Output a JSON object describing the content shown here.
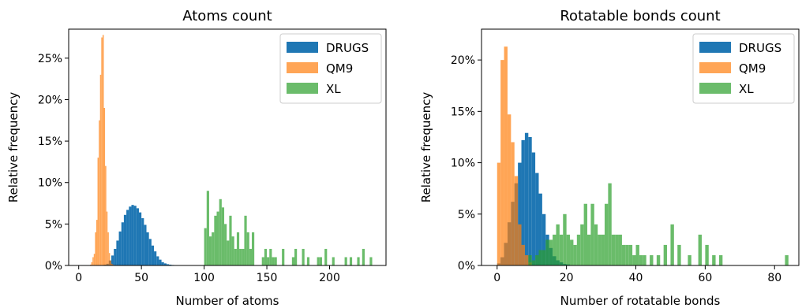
{
  "chart_data": [
    {
      "type": "histogram",
      "title": "Atoms count",
      "xlabel": "Number of atoms",
      "ylabel": "Relative frequency",
      "xlim": [
        -8,
        245
      ],
      "ylim": [
        0,
        0.285
      ],
      "xticks": [
        0,
        50,
        100,
        150,
        200
      ],
      "xtick_labels": [
        "0",
        "50",
        "100",
        "150",
        "200"
      ],
      "yticks": [
        0,
        0.05,
        0.1,
        0.15,
        0.2,
        0.25
      ],
      "ytick_labels": [
        "0%",
        "5%",
        "10%",
        "15%",
        "20%",
        "25%"
      ],
      "legend_position": "top-right",
      "series": [
        {
          "name": "DRUGS",
          "color": "#1f77b4",
          "bin_width": 2,
          "x": [
            20,
            22,
            24,
            26,
            28,
            30,
            32,
            34,
            36,
            38,
            40,
            42,
            44,
            46,
            48,
            50,
            52,
            54,
            56,
            58,
            60,
            62,
            64,
            66,
            68,
            70,
            72,
            74,
            76,
            78
          ],
          "y": [
            0.001,
            0.002,
            0.006,
            0.012,
            0.02,
            0.03,
            0.041,
            0.052,
            0.061,
            0.067,
            0.071,
            0.073,
            0.072,
            0.069,
            0.064,
            0.057,
            0.049,
            0.04,
            0.032,
            0.024,
            0.017,
            0.011,
            0.007,
            0.004,
            0.0025,
            0.0015,
            0.001,
            0.0006,
            0.0003,
            0.0002
          ]
        },
        {
          "name": "QM9",
          "color": "#ff7f0e",
          "bin_width": 1,
          "x": [
            9,
            10,
            11,
            12,
            13,
            14,
            15,
            16,
            17,
            18,
            19,
            20,
            21,
            22,
            23,
            24,
            25,
            26,
            27,
            28
          ],
          "y": [
            0.001,
            0.004,
            0.01,
            0.014,
            0.04,
            0.055,
            0.13,
            0.175,
            0.23,
            0.275,
            0.278,
            0.19,
            0.12,
            0.065,
            0.04,
            0.015,
            0.006,
            0.002,
            0.001,
            0.0005
          ]
        },
        {
          "name": "XL",
          "color": "#2ca02c",
          "bin_width": 2,
          "x": [
            100,
            102,
            104,
            106,
            108,
            110,
            112,
            114,
            116,
            118,
            120,
            122,
            124,
            126,
            128,
            130,
            132,
            134,
            136,
            138,
            146,
            148,
            150,
            152,
            154,
            156,
            162,
            170,
            172,
            178,
            182,
            190,
            192,
            196,
            202,
            212,
            216,
            222,
            226,
            232
          ],
          "y": [
            0.045,
            0.09,
            0.035,
            0.04,
            0.06,
            0.065,
            0.08,
            0.07,
            0.05,
            0.03,
            0.06,
            0.035,
            0.02,
            0.04,
            0.02,
            0.02,
            0.06,
            0.04,
            0.02,
            0.04,
            0.01,
            0.02,
            0.01,
            0.02,
            0.01,
            0.01,
            0.02,
            0.01,
            0.02,
            0.02,
            0.01,
            0.01,
            0.01,
            0.02,
            0.01,
            0.01,
            0.01,
            0.01,
            0.02,
            0.01
          ]
        }
      ]
    },
    {
      "type": "histogram",
      "title": "Rotatable bonds count",
      "xlabel": "Number of rotatable bonds",
      "ylabel": "Relative frequency",
      "xlim": [
        -4.5,
        87
      ],
      "ylim": [
        0,
        0.23
      ],
      "xticks": [
        0,
        20,
        40,
        60,
        80
      ],
      "xtick_labels": [
        "0",
        "20",
        "40",
        "60",
        "80"
      ],
      "yticks": [
        0,
        0.05,
        0.1,
        0.15,
        0.2
      ],
      "ytick_labels": [
        "0%",
        "5%",
        "10%",
        "15%",
        "20%"
      ],
      "legend_position": "top-right",
      "series": [
        {
          "name": "DRUGS",
          "color": "#1f77b4",
          "bin_width": 1,
          "x": [
            0,
            1,
            2,
            3,
            4,
            5,
            6,
            7,
            8,
            9,
            10,
            11,
            12,
            13,
            14,
            15,
            16,
            17,
            18,
            19,
            20
          ],
          "y": [
            0.002,
            0.008,
            0.022,
            0.042,
            0.062,
            0.08,
            0.1,
            0.122,
            0.129,
            0.125,
            0.11,
            0.09,
            0.07,
            0.05,
            0.03,
            0.017,
            0.009,
            0.005,
            0.003,
            0.0015,
            0.001
          ]
        },
        {
          "name": "QM9",
          "color": "#ff7f0e",
          "bin_width": 1,
          "x": [
            0,
            1,
            2,
            3,
            4,
            5,
            6,
            7,
            8,
            9
          ],
          "y": [
            0.1,
            0.2,
            0.213,
            0.147,
            0.12,
            0.087,
            0.04,
            0.02,
            0.01,
            0.003
          ]
        },
        {
          "name": "XL",
          "color": "#2ca02c",
          "bin_width": 1,
          "x": [
            9,
            10,
            11,
            12,
            13,
            14,
            15,
            16,
            17,
            18,
            19,
            20,
            21,
            22,
            23,
            24,
            25,
            26,
            27,
            28,
            29,
            30,
            31,
            32,
            33,
            34,
            35,
            36,
            37,
            38,
            39,
            40,
            41,
            42,
            44,
            46,
            48,
            50,
            52,
            55,
            58,
            60,
            62,
            64,
            83
          ],
          "y": [
            0.01,
            0.005,
            0.01,
            0.015,
            0.015,
            0.025,
            0.025,
            0.03,
            0.04,
            0.03,
            0.05,
            0.03,
            0.025,
            0.02,
            0.03,
            0.04,
            0.06,
            0.03,
            0.06,
            0.04,
            0.03,
            0.03,
            0.06,
            0.08,
            0.03,
            0.03,
            0.03,
            0.02,
            0.02,
            0.02,
            0.01,
            0.02,
            0.01,
            0.01,
            0.01,
            0.01,
            0.02,
            0.04,
            0.02,
            0.01,
            0.03,
            0.02,
            0.01,
            0.01,
            0.01
          ]
        }
      ]
    }
  ]
}
